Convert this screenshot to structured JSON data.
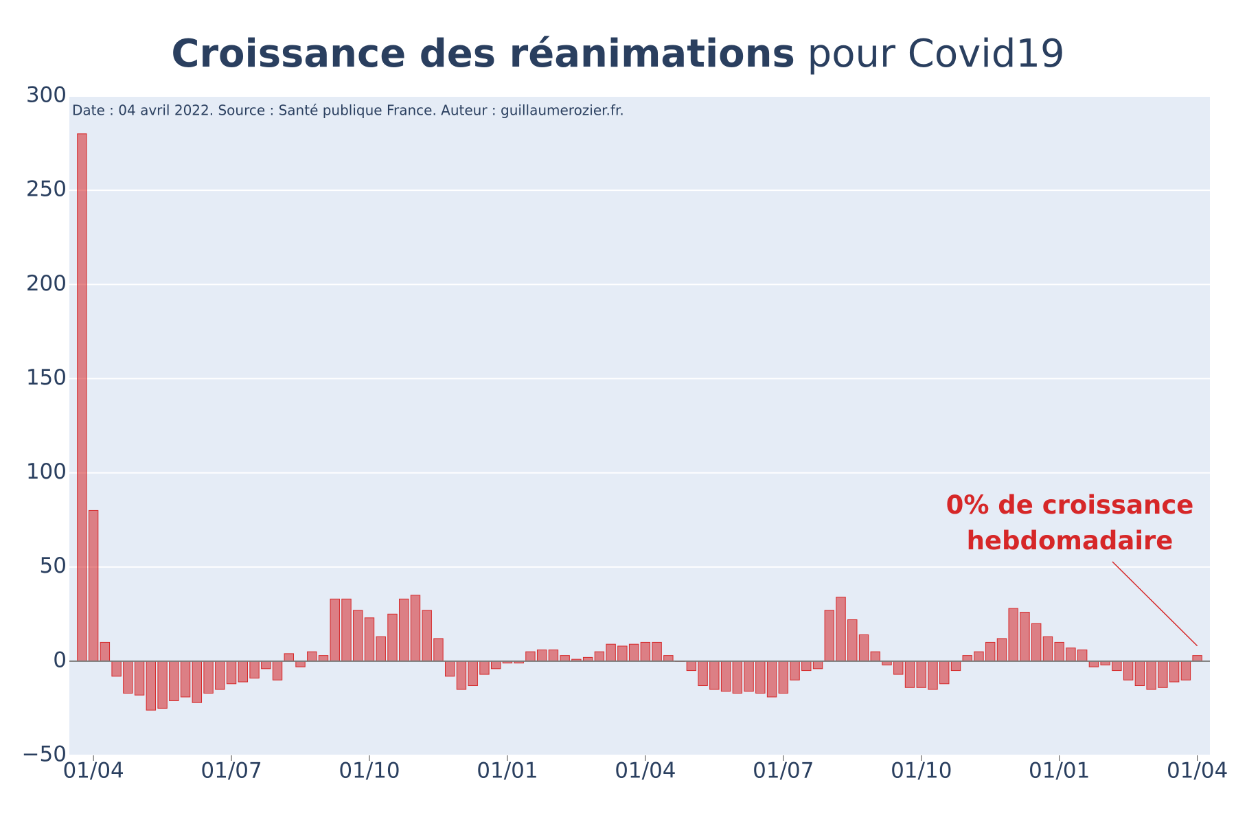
{
  "chart_data": {
    "type": "bar",
    "title_bold": "Croissance des réanimations",
    "title_rest": "pour Covid19",
    "subtitle": "Date : 04 avril 2022. Source : Santé publique France. Auteur : guillaumerozier.fr.",
    "annotation": [
      "0% de croissance",
      "hebdomadaire"
    ],
    "categories": [
      null,
      "01/04",
      null,
      null,
      null,
      null,
      null,
      null,
      null,
      null,
      null,
      null,
      null,
      "01/07",
      null,
      null,
      null,
      null,
      null,
      null,
      null,
      null,
      null,
      null,
      null,
      "01/10",
      null,
      null,
      null,
      null,
      null,
      null,
      null,
      null,
      null,
      null,
      null,
      "01/01",
      null,
      null,
      null,
      null,
      null,
      null,
      null,
      null,
      null,
      null,
      null,
      "01/04",
      null,
      null,
      null,
      null,
      null,
      null,
      null,
      null,
      null,
      null,
      null,
      "01/07",
      null,
      null,
      null,
      null,
      null,
      null,
      null,
      null,
      null,
      null,
      null,
      "01/10",
      null,
      null,
      null,
      null,
      null,
      null,
      null,
      null,
      null,
      null,
      null,
      "01/01",
      null,
      null,
      null,
      null,
      null,
      null,
      null,
      null,
      null,
      null,
      null,
      "01/04"
    ],
    "values": [
      280,
      80,
      10,
      -8,
      -17,
      -18,
      -26,
      -25,
      -21,
      -19,
      -22,
      -17,
      -15,
      -12,
      -11,
      -9,
      -4,
      -10,
      4,
      -3,
      5,
      3,
      33,
      33,
      27,
      23,
      13,
      25,
      33,
      35,
      27,
      12,
      -8,
      -15,
      -13,
      -7,
      -4,
      -1,
      -1,
      5,
      6,
      6,
      3,
      1,
      2,
      5,
      9,
      8,
      9,
      10,
      10,
      3,
      0,
      -5,
      -13,
      -15,
      -16,
      -17,
      -16,
      -17,
      -19,
      -17,
      -10,
      -5,
      -4,
      27,
      34,
      22,
      14,
      5,
      -2,
      -7,
      -14,
      -14,
      -15,
      -12,
      -5,
      3,
      5,
      10,
      12,
      28,
      26,
      20,
      13,
      10,
      7,
      6,
      -3,
      -2,
      -5,
      -10,
      -13,
      -15,
      -14,
      -11,
      -10,
      3
    ],
    "color": "#d62728",
    "ylim": [
      -50,
      300
    ],
    "yticks": [
      {
        "value": -50,
        "label": "−50"
      },
      0,
      50,
      100,
      150,
      200,
      250,
      300
    ],
    "grid": true
  }
}
